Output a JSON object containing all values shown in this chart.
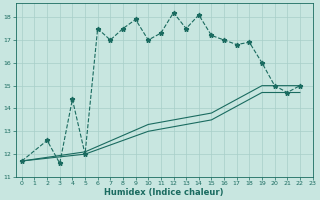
{
  "title": "",
  "xlabel": "Humidex (Indice chaleur)",
  "background_color": "#c8e6e0",
  "grid_color": "#a8cec8",
  "line_color": "#1a6b60",
  "xlim": [
    -0.5,
    23
  ],
  "ylim": [
    11,
    18.6
  ],
  "yticks": [
    11,
    12,
    13,
    14,
    15,
    16,
    17,
    18
  ],
  "xticks": [
    0,
    1,
    2,
    3,
    4,
    5,
    6,
    7,
    8,
    9,
    10,
    11,
    12,
    13,
    14,
    15,
    16,
    17,
    18,
    19,
    20,
    21,
    22,
    23
  ],
  "series": [
    {
      "x": [
        0,
        2,
        3,
        4,
        5,
        6,
        7,
        8,
        9,
        10,
        11,
        12,
        13,
        14,
        15,
        16,
        17,
        18,
        19,
        20,
        21,
        22
      ],
      "y": [
        11.7,
        12.6,
        11.6,
        14.4,
        12.0,
        17.5,
        17.0,
        17.5,
        17.9,
        17.0,
        17.3,
        18.2,
        17.5,
        18.1,
        17.2,
        17.0,
        16.8,
        16.9,
        16.0,
        15.0,
        14.7,
        15.0
      ],
      "marker": "*",
      "linestyle": "--",
      "linewidth": 0.8,
      "markersize": 3.5
    },
    {
      "x": [
        0,
        5,
        10,
        15,
        19,
        22
      ],
      "y": [
        11.7,
        12.1,
        13.3,
        13.8,
        15.0,
        15.0
      ],
      "marker": null,
      "linestyle": "-",
      "linewidth": 0.8
    },
    {
      "x": [
        0,
        5,
        10,
        15,
        19,
        22
      ],
      "y": [
        11.7,
        12.0,
        13.0,
        13.5,
        14.7,
        14.7
      ],
      "marker": null,
      "linestyle": "-",
      "linewidth": 0.8
    }
  ]
}
